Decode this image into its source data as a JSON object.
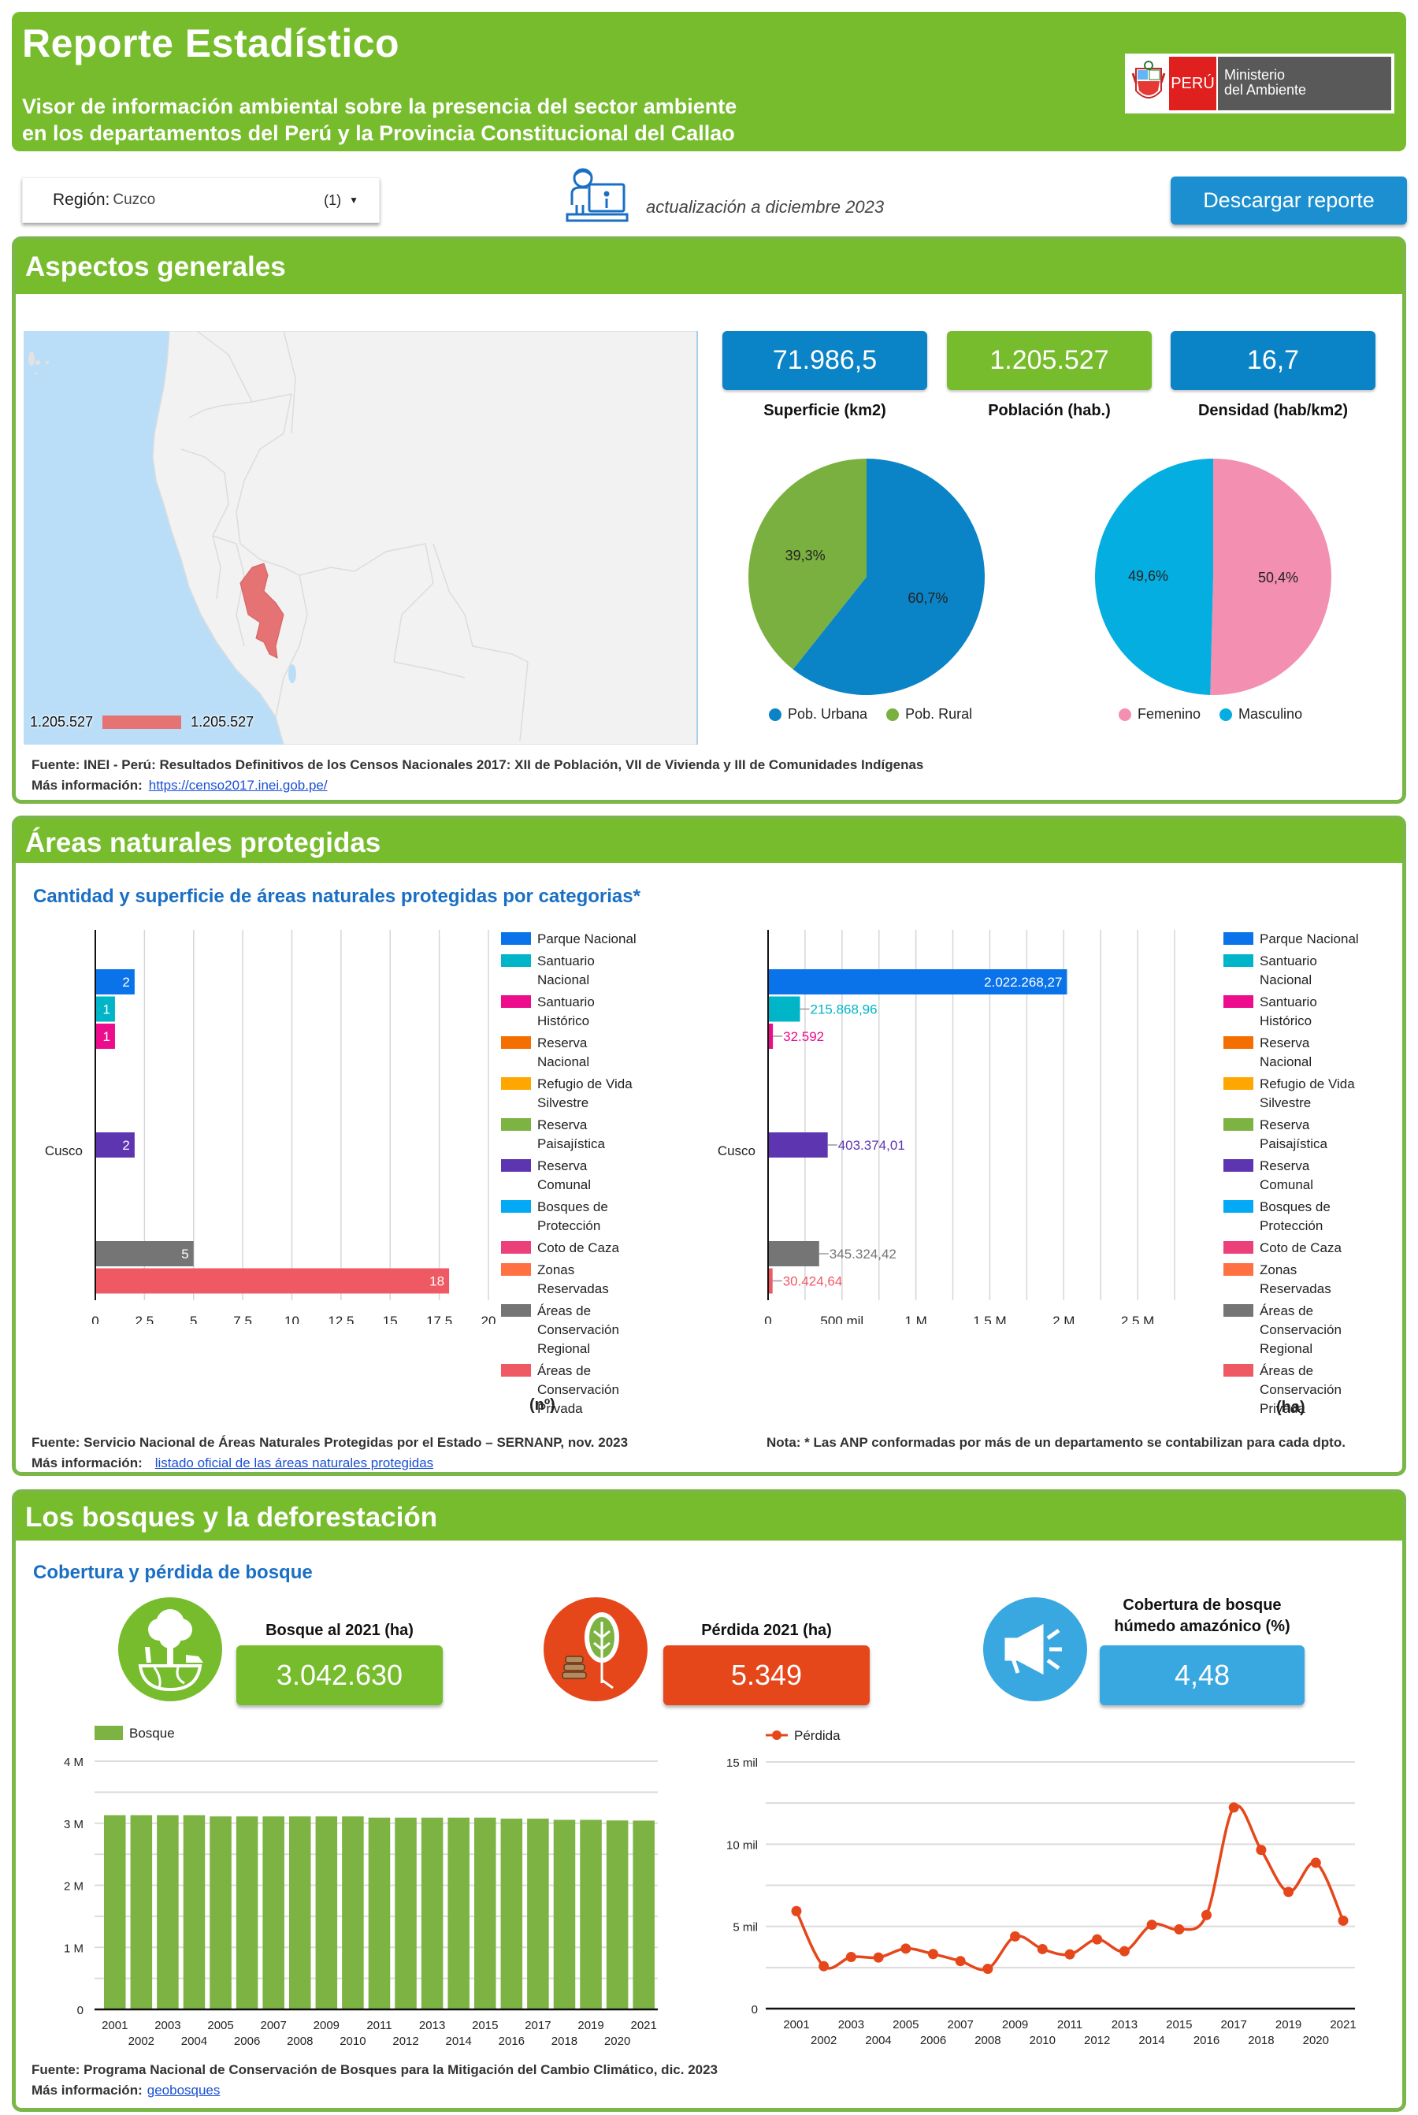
{
  "header": {
    "title": "Reporte Estadístico",
    "subtitle_line1": "Visor de información ambiental sobre la presencia del sector ambiente",
    "subtitle_line2": "en los departamentos del Perú y la Provincia Constitucional del Callao",
    "logo": {
      "country": "PERÚ",
      "ministry_line1": "Ministerio",
      "ministry_line2": "del Ambiente",
      "shield_icon": "coat-of-arms-icon"
    }
  },
  "toolbar": {
    "region_label": "Región:",
    "region_value": "Cuzco",
    "region_count": "(1)",
    "update_icon": "person-at-computer-icon",
    "update_text": "actualización a diciembre 2023",
    "download_label": "Descargar reporte"
  },
  "colors": {
    "brand_green": "#76bc2c",
    "brand_blue": "#0a84c6",
    "accent_red": "#e5471b",
    "link": "#1a4fd6"
  },
  "aspectos": {
    "title": "Aspectos generales",
    "map": {
      "highlight_region": "Cusco",
      "legend_min": "1.205.527",
      "legend_max": "1.205.527",
      "highlight_color": "#e57373"
    },
    "stats": [
      {
        "value": "71.986,5",
        "label": "Superficie (km2)",
        "color": "#0a84c6"
      },
      {
        "value": "1.205.527",
        "label": "Población (hab.)",
        "color": "#76bc2c"
      },
      {
        "value": "16,7",
        "label": "Densidad (hab/km2)",
        "color": "#0a84c6"
      }
    ],
    "source": "Fuente: INEI - Perú: Resultados Definitivos de los Censos Nacionales 2017: XII de Población, VII de Vivienda y III de Comunidades Indígenas",
    "more_label": "Más información:",
    "more_link": "https://censo2017.inei.gob.pe/"
  },
  "anp": {
    "title": "Áreas naturales protegidas",
    "subtitle": "Cantidad y superficie de áreas naturales protegidas por categorias*",
    "source": "Fuente: Servicio Nacional de Áreas Naturales Protegidas por el Estado – SERNANP, nov. 2023",
    "more_label": "Más información:",
    "more_link": "listado oficial de las áreas naturales protegidas",
    "note": "Nota: * Las ANP conformadas por más de un departamento se contabilizan para cada dpto."
  },
  "bosques": {
    "title": "Los bosques y la deforestación",
    "subtitle": "Cobertura y pérdida de bosque",
    "kpis": [
      {
        "label": "Bosque al 2021 (ha)",
        "value": "3.042.630",
        "color": "#76bc2c",
        "icon": "tree-earth-icon"
      },
      {
        "label": "Pérdida 2021 (ha)",
        "value": "5.349",
        "color": "#e5471b",
        "icon": "tree-logs-icon"
      },
      {
        "label": "Cobertura de bosque húmedo amazónico (%)",
        "value": "4,48",
        "color": "#3aa8e0",
        "icon": "megaphone-icon"
      }
    ],
    "source": "Fuente: Programa Nacional de Conservación de Bosques para la Mitigación del Cambio Climático, dic. 2023",
    "more_label": "Más información:",
    "more_link": "geobosques"
  },
  "chart_data": [
    {
      "id": "urban_rural",
      "type": "pie",
      "slices": [
        {
          "name": "Pob. Urbana",
          "value": 60.7,
          "label": "60,7%",
          "color": "#0a84c6"
        },
        {
          "name": "Pob. Rural",
          "value": 39.3,
          "label": "39,3%",
          "color": "#7ab03f"
        }
      ],
      "legend": "bottom"
    },
    {
      "id": "sex",
      "type": "pie",
      "slices": [
        {
          "name": "Femenino",
          "value": 50.4,
          "label": "50,4%",
          "color": "#f38fb1"
        },
        {
          "name": "Masculino",
          "value": 49.6,
          "label": "49,6%",
          "color": "#05aee0"
        }
      ],
      "legend": "bottom"
    },
    {
      "id": "anp_count",
      "type": "bar",
      "orientation": "horizontal",
      "categories": [
        "Cusco"
      ],
      "xlabel": "(nº)",
      "xlim": [
        0,
        20
      ],
      "xticks": [
        "0",
        "2,5",
        "5",
        "7,5",
        "10",
        "12,5",
        "15",
        "17,5",
        "20"
      ],
      "legend": "right",
      "series": [
        {
          "name": "Parque Nacional",
          "color": "#0a73ea",
          "value": 2,
          "label": "2"
        },
        {
          "name": "Santuario Nacional",
          "color": "#00b5c8",
          "value": 1,
          "label": "1"
        },
        {
          "name": "Santuario Histórico",
          "color": "#ec0c8c",
          "value": 1,
          "label": "1"
        },
        {
          "name": "Reserva Nacional",
          "color": "#f56f00",
          "value": null,
          "label": ""
        },
        {
          "name": "Refugio de Vida Silvestre",
          "color": "#ffa600",
          "value": null,
          "label": ""
        },
        {
          "name": "Reserva Paisajística",
          "color": "#7cb342",
          "value": null,
          "label": ""
        },
        {
          "name": "Reserva Comunal",
          "color": "#5e35b1",
          "value": 2,
          "label": "2"
        },
        {
          "name": "Bosques de Protección",
          "color": "#03a9f4",
          "value": null,
          "label": ""
        },
        {
          "name": "Coto de Caza",
          "color": "#ec407a",
          "value": null,
          "label": ""
        },
        {
          "name": "Zonas Reservadas",
          "color": "#ff7043",
          "value": null,
          "label": ""
        },
        {
          "name": "Áreas de Conservación Regional",
          "color": "#757575",
          "value": 5,
          "label": "5"
        },
        {
          "name": "Áreas de Conservación Privada",
          "color": "#ef5964",
          "value": 18,
          "label": "18"
        }
      ]
    },
    {
      "id": "anp_area",
      "type": "bar",
      "orientation": "horizontal",
      "categories": [
        "Cusco"
      ],
      "xlabel": "(ha)",
      "xlim": [
        0,
        2750000
      ],
      "xticks": [
        "0",
        "500 mil",
        "1 M",
        "1,5 M",
        "2 M",
        "2,5 M"
      ],
      "legend": "right",
      "series": [
        {
          "name": "Parque Nacional",
          "color": "#0a73ea",
          "value": 2022268.27,
          "label": "2.022.268,27"
        },
        {
          "name": "Santuario Nacional",
          "color": "#00b5c8",
          "value": 215868.96,
          "label": "215.868,96"
        },
        {
          "name": "Santuario Histórico",
          "color": "#ec0c8c",
          "value": 32592,
          "label": "32.592"
        },
        {
          "name": "Reserva Nacional",
          "color": "#f56f00",
          "value": null,
          "label": ""
        },
        {
          "name": "Refugio de Vida Silvestre",
          "color": "#ffa600",
          "value": null,
          "label": ""
        },
        {
          "name": "Reserva Paisajística",
          "color": "#7cb342",
          "value": null,
          "label": ""
        },
        {
          "name": "Reserva Comunal",
          "color": "#5e35b1",
          "value": 403374.01,
          "label": "403.374,01"
        },
        {
          "name": "Bosques de Protección",
          "color": "#03a9f4",
          "value": null,
          "label": ""
        },
        {
          "name": "Coto de Caza",
          "color": "#ec407a",
          "value": null,
          "label": ""
        },
        {
          "name": "Zonas Reservadas",
          "color": "#ff7043",
          "value": null,
          "label": ""
        },
        {
          "name": "Áreas de Conservación Regional",
          "color": "#757575",
          "value": 345324.42,
          "label": "345.324,42"
        },
        {
          "name": "Áreas de Conservación Privada",
          "color": "#ef5964",
          "value": 30424.64,
          "label": "30.424,64"
        }
      ]
    },
    {
      "id": "forest",
      "type": "bar",
      "title": "",
      "legend_label": "Bosque",
      "color": "#7cb342",
      "ylim": [
        0,
        4000000
      ],
      "yticks": [
        "0",
        "1 M",
        "2 M",
        "3 M",
        "4 M"
      ],
      "categories": [
        "2001",
        "2002",
        "2003",
        "2004",
        "2005",
        "2006",
        "2007",
        "2008",
        "2009",
        "2010",
        "2011",
        "2012",
        "2013",
        "2014",
        "2015",
        "2016",
        "2017",
        "2018",
        "2019",
        "2020",
        "2021"
      ],
      "values": [
        3130000,
        3130000,
        3130000,
        3130000,
        3110000,
        3110000,
        3110000,
        3110000,
        3110000,
        3110000,
        3090000,
        3090000,
        3090000,
        3090000,
        3090000,
        3075000,
        3075000,
        3055000,
        3055000,
        3045000,
        3042630
      ]
    },
    {
      "id": "loss",
      "type": "line",
      "legend_label": "Pérdida",
      "color": "#e5471b",
      "ylim": [
        0,
        15000
      ],
      "yticks": [
        "0",
        "5 mil",
        "10 mil",
        "15 mil"
      ],
      "categories": [
        "2001",
        "2002",
        "2003",
        "2004",
        "2005",
        "2006",
        "2007",
        "2008",
        "2009",
        "2010",
        "2011",
        "2012",
        "2013",
        "2014",
        "2015",
        "2016",
        "2017",
        "2018",
        "2019",
        "2020",
        "2021"
      ],
      "values": [
        5930,
        2580,
        3140,
        3110,
        3650,
        3320,
        2890,
        2420,
        4390,
        3620,
        3300,
        4210,
        3490,
        5100,
        4820,
        5690,
        12230,
        9650,
        7100,
        8870,
        5349
      ]
    }
  ]
}
